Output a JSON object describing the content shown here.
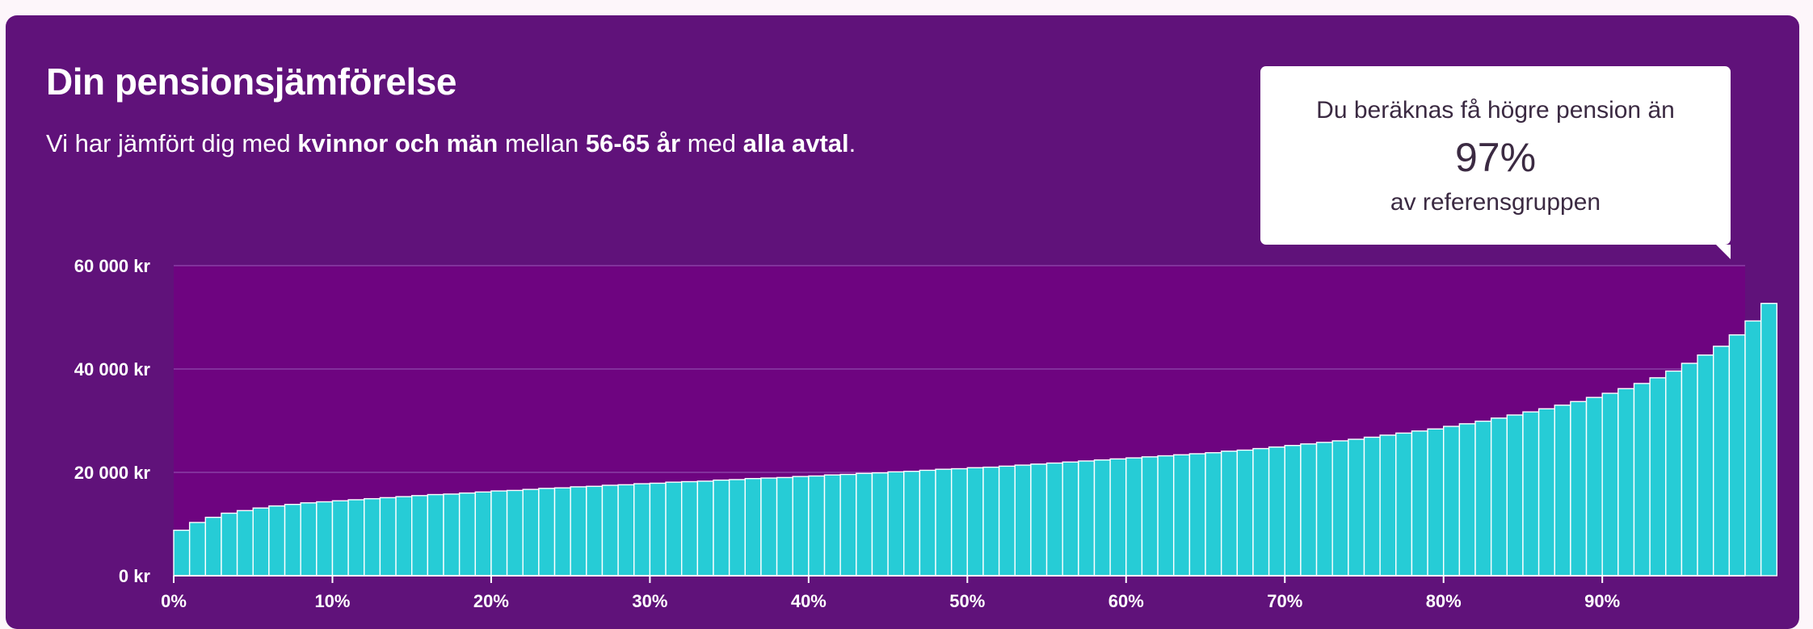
{
  "card": {
    "title": "Din pensionsjämförelse",
    "subtitle": {
      "t1": "Vi har jämfört dig med ",
      "b1": "kvinnor och män",
      "t2": " mellan ",
      "b2": "56-65 år",
      "t3": " med ",
      "b3": "alla avtal",
      "t4": "."
    }
  },
  "callout": {
    "line1": "Du beräknas få högre pension än",
    "percent": "97%",
    "line3": "av referensgruppen"
  },
  "colors": {
    "card_background": "#60127a",
    "plot_background": "#6e0480",
    "bar_fill": "#26ccd6",
    "bar_stroke": "#ffffff",
    "gridline": "#8a3fa6"
  },
  "chart_data": {
    "type": "bar",
    "title": "",
    "xlabel": "",
    "ylabel": "",
    "ylim": [
      0,
      60000
    ],
    "xlim": [
      0,
      99
    ],
    "grid": true,
    "yticks": [
      {
        "value": 0,
        "label": "0 kr"
      },
      {
        "value": 20000,
        "label": "20 000 kr"
      },
      {
        "value": 40000,
        "label": "40 000 kr"
      },
      {
        "value": 60000,
        "label": "60 000 kr"
      }
    ],
    "xticks": [
      {
        "value": 0,
        "label": "0%"
      },
      {
        "value": 10,
        "label": "10%"
      },
      {
        "value": 20,
        "label": "20%"
      },
      {
        "value": 30,
        "label": "30%"
      },
      {
        "value": 40,
        "label": "40%"
      },
      {
        "value": 50,
        "label": "50%"
      },
      {
        "value": 60,
        "label": "60%"
      },
      {
        "value": 70,
        "label": "70%"
      },
      {
        "value": 80,
        "label": "80%"
      },
      {
        "value": 90,
        "label": "90%"
      }
    ],
    "series": [
      {
        "percentile_start": 0.5,
        "values": [
          8800,
          10300,
          11300,
          12100,
          12600,
          13100,
          13500,
          13800,
          14100,
          14300,
          14500,
          14700,
          14900,
          15100,
          15300,
          15500,
          15700,
          15800,
          16000,
          16200,
          16400,
          16500,
          16700,
          16900,
          17000,
          17200,
          17300,
          17500,
          17600,
          17800,
          17900,
          18100,
          18200,
          18300,
          18500,
          18600,
          18800,
          18900,
          19000,
          19200,
          19300,
          19500,
          19600,
          19800,
          19900,
          20100,
          20200,
          20400,
          20600,
          20700,
          20900,
          21000,
          21200,
          21400,
          21600,
          21800,
          22000,
          22200,
          22400,
          22600,
          22800,
          23000,
          23200,
          23400,
          23600,
          23800,
          24100,
          24300,
          24600,
          24900,
          25200,
          25500,
          25800,
          26100,
          26400,
          26800,
          27200,
          27600,
          28000,
          28400,
          28900,
          29400,
          29900,
          30500,
          31100,
          31700,
          32300,
          33000,
          33700,
          34500,
          35300,
          36200,
          37200,
          38300,
          39600,
          41100,
          42700,
          44400,
          46600,
          49300,
          52700
        ]
      }
    ]
  }
}
